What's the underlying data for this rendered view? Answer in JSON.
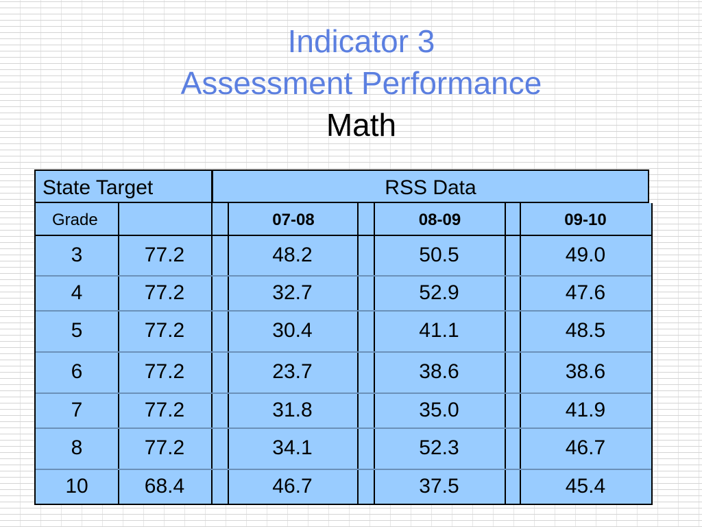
{
  "title": {
    "line1": "Indicator 3",
    "line2": "Assessment Performance",
    "line3": "Math"
  },
  "table": {
    "state_target_label": "State Target",
    "rss_data_label": "RSS Data",
    "grade_label": "Grade",
    "year_headers": [
      "07-08",
      "08-09",
      "09-10"
    ],
    "rows": [
      {
        "grade": "3",
        "target": "77.2",
        "y0708": "48.2",
        "y0809": "50.5",
        "y0910": "49.0"
      },
      {
        "grade": "4",
        "target": "77.2",
        "y0708": "32.7",
        "y0809": "52.9",
        "y0910": "47.6"
      },
      {
        "grade": "5",
        "target": "77.2",
        "y0708": "30.4",
        "y0809": "41.1",
        "y0910": "48.5"
      },
      {
        "grade": "6",
        "target": "77.2",
        "y0708": "23.7",
        "y0809": "38.6",
        "y0910": "38.6"
      },
      {
        "grade": "7",
        "target": "77.2",
        "y0708": "31.8",
        "y0809": "35.0",
        "y0910": "41.9"
      },
      {
        "grade": "8",
        "target": "77.2",
        "y0708": "34.1",
        "y0809": "52.3",
        "y0910": "46.7"
      },
      {
        "grade": "10",
        "target": "68.4",
        "y0708": "46.7",
        "y0809": "37.5",
        "y0910": "45.4"
      }
    ]
  },
  "colors": {
    "title_blue": "#5b7fe0",
    "cell_fill": "#99ccff"
  }
}
